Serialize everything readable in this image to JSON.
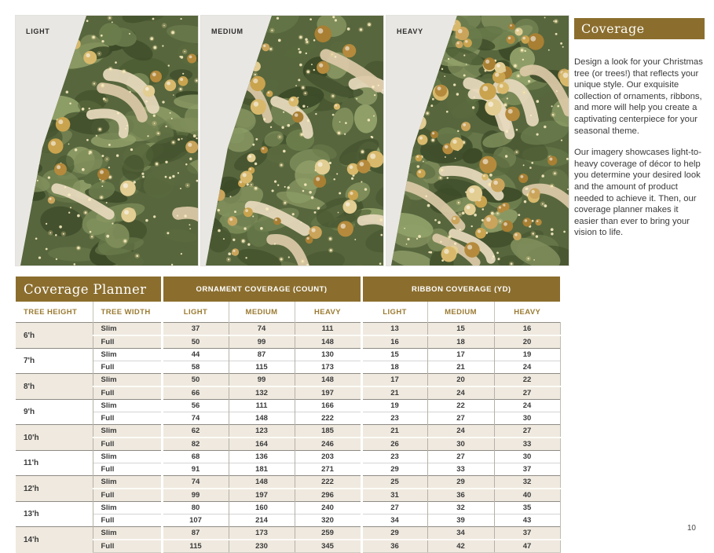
{
  "gallery": {
    "panels": [
      {
        "label": "LIGHT",
        "level": "light"
      },
      {
        "label": "MEDIUM",
        "level": "medium"
      },
      {
        "label": "HEAVY",
        "level": "heavy"
      }
    ]
  },
  "sidebar": {
    "title": "Coverage",
    "paragraphs": [
      "Design a look for your Christmas tree (or trees!) that reflects your unique style. Our exquisite collection of ornaments, ribbons, and more will help you create a captivating centerpiece for your seasonal theme.",
      "Our imagery showcases light-to-heavy coverage of décor to help you determine your desired look and the amount of product needed to achieve it. Then, our coverage planner makes it easier than ever to bring your vision to life."
    ]
  },
  "planner": {
    "title": "Coverage Planner",
    "group_headers": [
      "ORNAMENT COVERAGE (COUNT)",
      "RIBBON COVERAGE (YD)"
    ],
    "column_headers": [
      "TREE HEIGHT",
      "TREE WIDTH",
      "LIGHT",
      "MEDIUM",
      "HEAVY",
      "LIGHT",
      "MEDIUM",
      "HEAVY"
    ],
    "rows": [
      {
        "height": "6'h",
        "widths": [
          {
            "width": "Slim",
            "values": [
              37,
              74,
              111,
              13,
              15,
              16
            ]
          },
          {
            "width": "Full",
            "values": [
              50,
              99,
              148,
              16,
              18,
              20
            ]
          }
        ]
      },
      {
        "height": "7'h",
        "widths": [
          {
            "width": "Slim",
            "values": [
              44,
              87,
              130,
              15,
              17,
              19
            ]
          },
          {
            "width": "Full",
            "values": [
              58,
              115,
              173,
              18,
              21,
              24
            ]
          }
        ]
      },
      {
        "height": "8'h",
        "widths": [
          {
            "width": "Slim",
            "values": [
              50,
              99,
              148,
              17,
              20,
              22
            ]
          },
          {
            "width": "Full",
            "values": [
              66,
              132,
              197,
              21,
              24,
              27
            ]
          }
        ]
      },
      {
        "height": "9'h",
        "widths": [
          {
            "width": "Slim",
            "values": [
              56,
              111,
              166,
              19,
              22,
              24
            ]
          },
          {
            "width": "Full",
            "values": [
              74,
              148,
              222,
              23,
              27,
              30
            ]
          }
        ]
      },
      {
        "height": "10'h",
        "widths": [
          {
            "width": "Slim",
            "values": [
              62,
              123,
              185,
              21,
              24,
              27
            ]
          },
          {
            "width": "Full",
            "values": [
              82,
              164,
              246,
              26,
              30,
              33
            ]
          }
        ]
      },
      {
        "height": "11'h",
        "widths": [
          {
            "width": "Slim",
            "values": [
              68,
              136,
              203,
              23,
              27,
              30
            ]
          },
          {
            "width": "Full",
            "values": [
              91,
              181,
              271,
              29,
              33,
              37
            ]
          }
        ]
      },
      {
        "height": "12'h",
        "widths": [
          {
            "width": "Slim",
            "values": [
              74,
              148,
              222,
              25,
              29,
              32
            ]
          },
          {
            "width": "Full",
            "values": [
              99,
              197,
              296,
              31,
              36,
              40
            ]
          }
        ]
      },
      {
        "height": "13'h",
        "widths": [
          {
            "width": "Slim",
            "values": [
              80,
              160,
              240,
              27,
              32,
              35
            ]
          },
          {
            "width": "Full",
            "values": [
              107,
              214,
              320,
              34,
              39,
              43
            ]
          }
        ]
      },
      {
        "height": "14'h",
        "widths": [
          {
            "width": "Slim",
            "values": [
              87,
              173,
              259,
              29,
              34,
              37
            ]
          },
          {
            "width": "Full",
            "values": [
              115,
              230,
              345,
              36,
              42,
              47
            ]
          }
        ]
      }
    ]
  },
  "page": {
    "number": "10"
  },
  "colors": {
    "accent_gold": "#8B6E2E",
    "header_text_gold": "#9B7B33",
    "row_beige": "#EFE9DF",
    "body_text": "#3A3A3A"
  }
}
